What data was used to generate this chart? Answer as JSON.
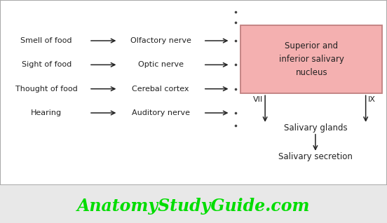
{
  "bg_color": "#e8e8e8",
  "diagram_bg": "#ffffff",
  "box_fill": "#f4b0b0",
  "box_edge": "#c08080",
  "left_labels": [
    "Smell of food",
    "Sight of food",
    "Thought of food",
    "Hearing"
  ],
  "middle_labels": [
    "Olfactory nerve",
    "Optic nerve",
    "Cerebal cortex",
    "Auditory nerve"
  ],
  "box_text": "Superior and\ninferior salivary\nnucleus",
  "label_VII": "VII",
  "label_IX": "IX",
  "label_salivary_glands": "Salivary glands",
  "label_salivary_secretion": "Salivary secretion",
  "footer_text": "AnatomyStudyGuide.com",
  "footer_color": "#00dd00",
  "text_color": "#222222",
  "arrow_color": "#222222",
  "dot_color": "#444444",
  "border_color": "#aaaaaa"
}
